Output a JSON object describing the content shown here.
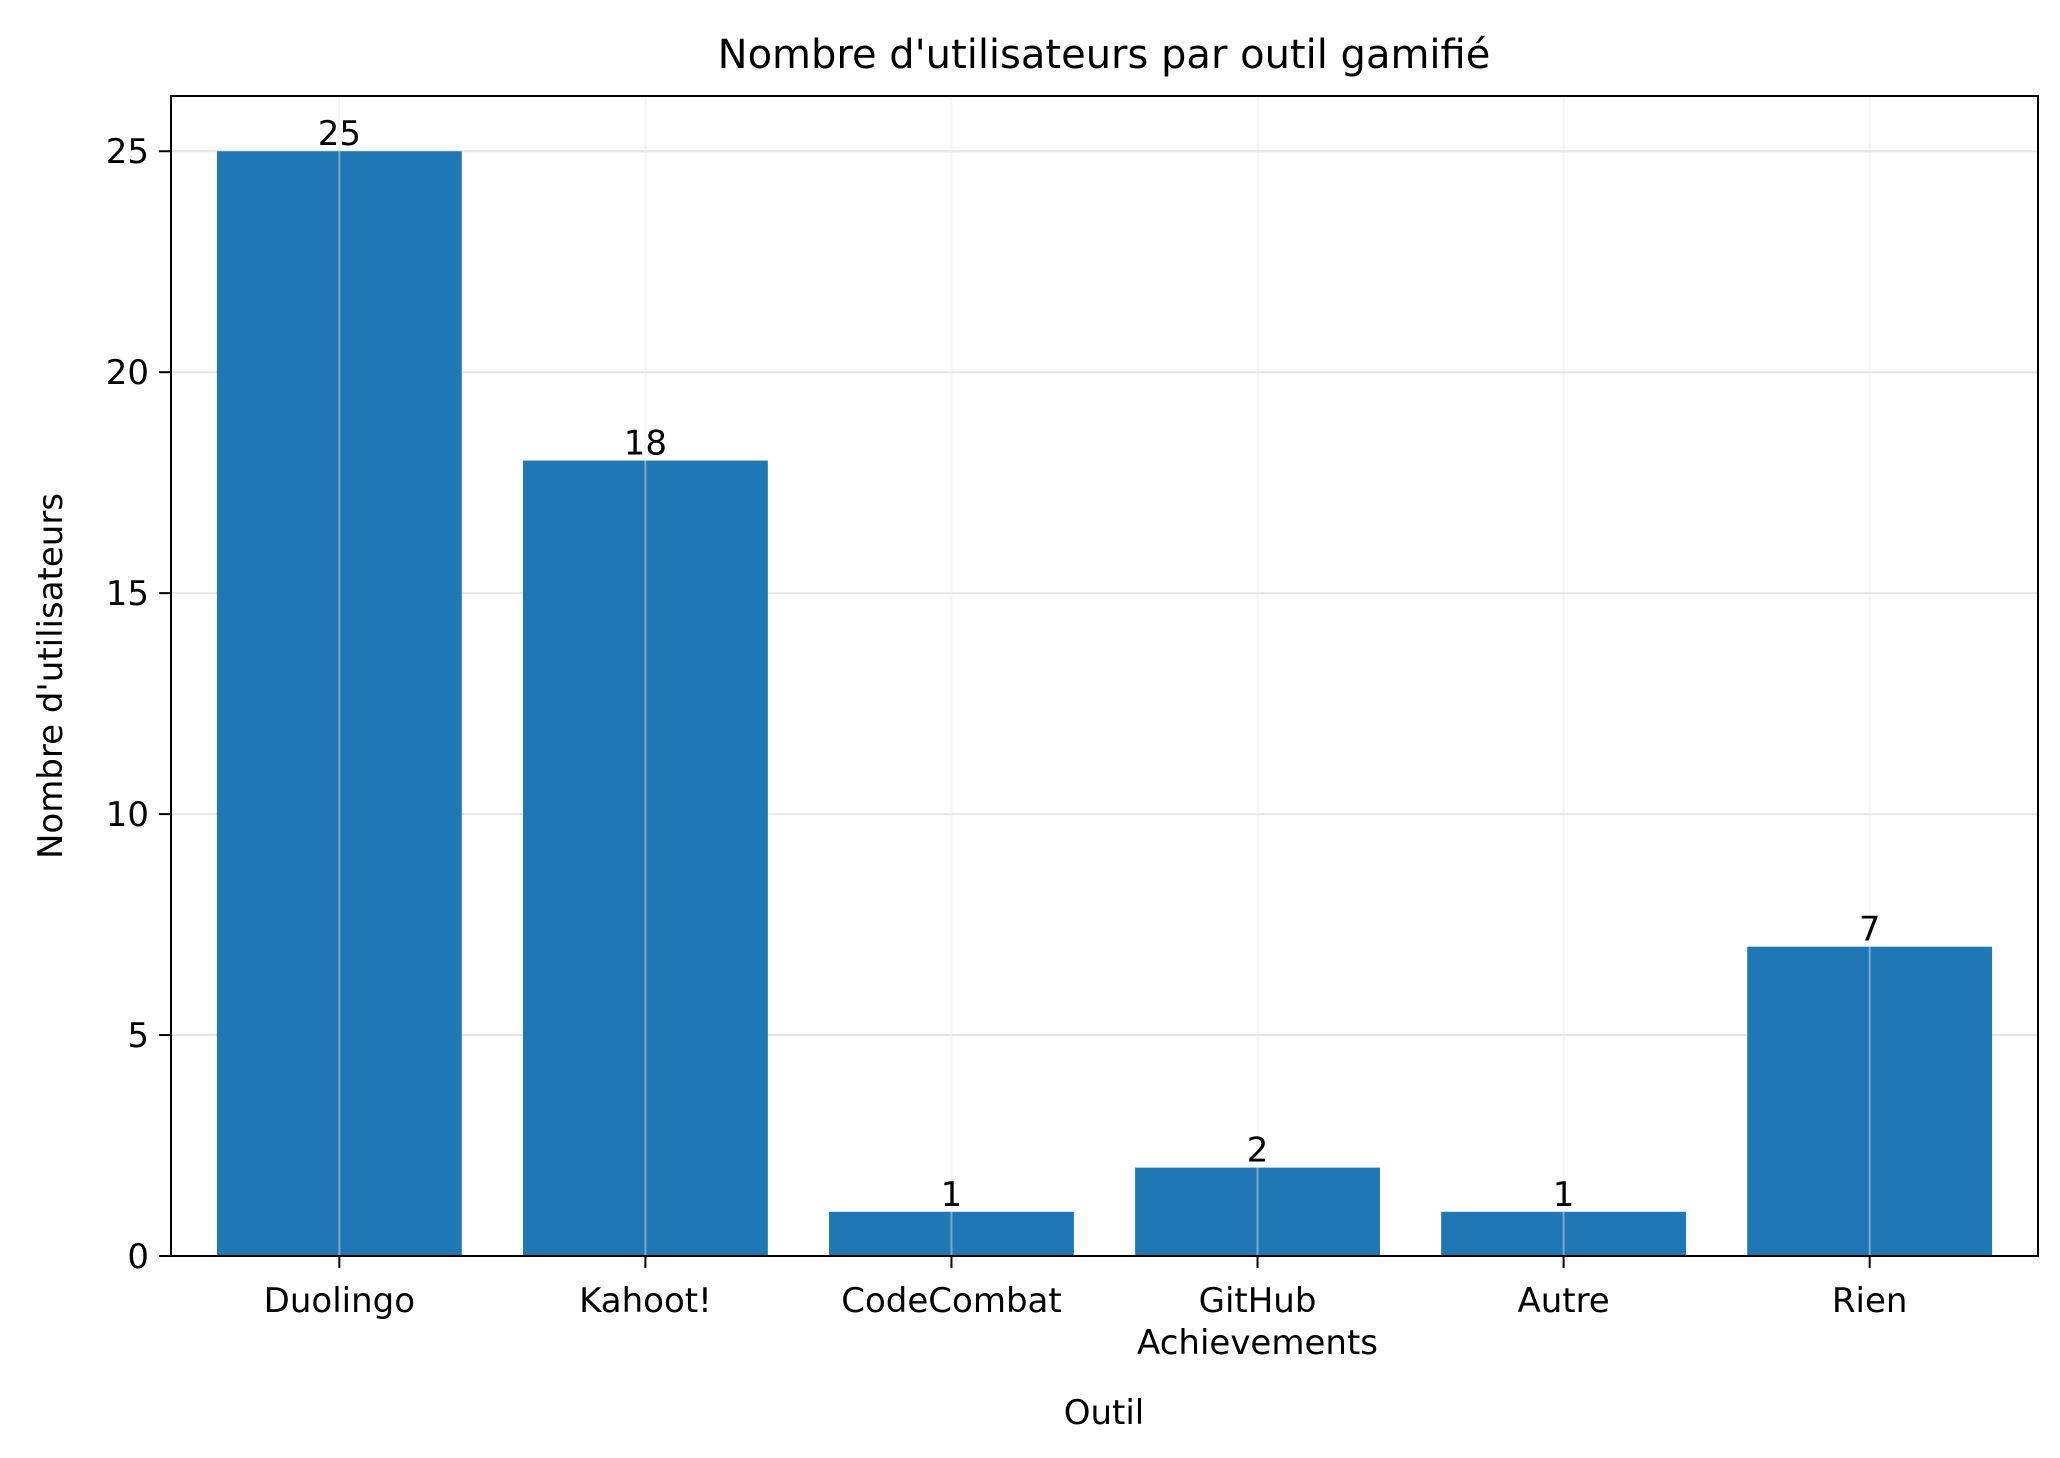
{
  "chart_data": {
    "type": "bar",
    "title": "Nombre d'utilisateurs par outil gamifié",
    "xlabel": "Outil",
    "ylabel": "Nombre d'utilisateurs",
    "categories": [
      [
        "Duolingo"
      ],
      [
        "Kahoot!"
      ],
      [
        "CodeCombat"
      ],
      [
        "GitHub",
        "Achievements"
      ],
      [
        "Autre"
      ],
      [
        "Rien"
      ]
    ],
    "values": [
      25,
      18,
      1,
      2,
      1,
      7
    ],
    "data_labels": [
      "25",
      "18",
      "1",
      "2",
      "1",
      "7"
    ],
    "yticks": [
      0,
      5,
      10,
      15,
      20,
      25
    ],
    "ytick_labels": [
      "0",
      "5",
      "10",
      "15",
      "20",
      "25"
    ],
    "ylim": [
      0,
      26.25
    ],
    "grid": true,
    "bar_color": "#1f77b4",
    "grid_color": "#e6e6e6"
  }
}
